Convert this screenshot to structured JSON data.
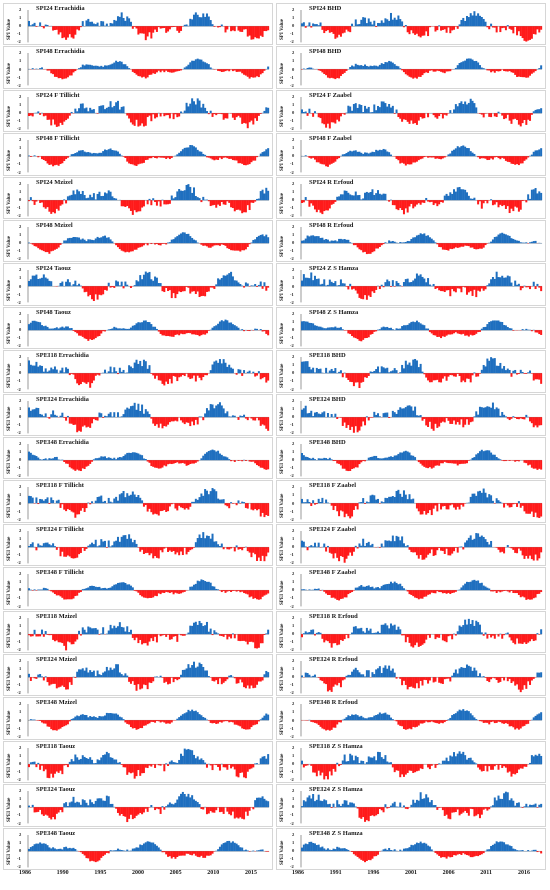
{
  "chart_data": {
    "type": "area",
    "layout": "grid 20 rows x 2 columns of small multiples",
    "colors": {
      "positive": "#1f6fbf",
      "negative": "#ff1a1a"
    },
    "yticks": [
      2,
      1,
      0,
      -1,
      -2
    ],
    "ylim": [
      -2,
      2
    ],
    "left_xticks": [
      "1986",
      "1990",
      "1995",
      "2000",
      "2005",
      "2010",
      "2015"
    ],
    "right_xticks": [
      "1986",
      "1991",
      "1996",
      "2001",
      "2006",
      "2011",
      "2016"
    ],
    "panels": [
      {
        "title": "SPI24 Errachidia",
        "ylabel": "SPI Value",
        "column": "left"
      },
      {
        "title": "SPI24 BHD",
        "ylabel": "SPI Value",
        "column": "right"
      },
      {
        "title": "SPI48 Errachidia",
        "ylabel": "SPI Value",
        "column": "left"
      },
      {
        "title": "SPI48 BHD",
        "ylabel": "SPI Value",
        "column": "right"
      },
      {
        "title": "SPI24 F Tillicht",
        "ylabel": "SPI Value",
        "column": "left"
      },
      {
        "title": "SPI24 F Zaabel",
        "ylabel": "SPI Value",
        "column": "right"
      },
      {
        "title": "SPI48 F Tillicht",
        "ylabel": "SPI Value",
        "column": "left"
      },
      {
        "title": "SPI48 F Zaabel",
        "ylabel": "SPI Value",
        "column": "right"
      },
      {
        "title": "SPI24 Mzizel",
        "ylabel": "SPI Value",
        "column": "left"
      },
      {
        "title": "SPI24 R Erfoud",
        "ylabel": "SPI Value",
        "column": "right"
      },
      {
        "title": "SPI48 Mzizel",
        "ylabel": "SPI Value",
        "column": "left"
      },
      {
        "title": "SPI48 R Erfoud",
        "ylabel": "SPI Value",
        "column": "right"
      },
      {
        "title": "SPI24 Taouz",
        "ylabel": "SPI Value",
        "column": "left"
      },
      {
        "title": "SPI24 Z S Hamza",
        "ylabel": "SPI Value",
        "column": "right"
      },
      {
        "title": "SPI48 Taouz",
        "ylabel": "SPI Value",
        "column": "left"
      },
      {
        "title": "SPI48 Z S Hamza",
        "ylabel": "SPI Value",
        "column": "right"
      },
      {
        "title": "SPEI18 Errachidia",
        "ylabel": "SPEI Value",
        "column": "left"
      },
      {
        "title": "SPEI18 BHD",
        "ylabel": "SPEI Value",
        "column": "right"
      },
      {
        "title": "SPEI24 Errachidia",
        "ylabel": "SPEI Value",
        "column": "left"
      },
      {
        "title": "SPEI24 BHD",
        "ylabel": "SPEI Value",
        "column": "right"
      },
      {
        "title": "SPEI48 Errachidia",
        "ylabel": "SPEI Value",
        "column": "left"
      },
      {
        "title": "SPEI48 BHD",
        "ylabel": "SPEI Value",
        "column": "right"
      },
      {
        "title": "SPEI18 F Tillicht",
        "ylabel": "SPEI Value",
        "column": "left"
      },
      {
        "title": "SPEI18 F Zaabel",
        "ylabel": "SPEI Value",
        "column": "right"
      },
      {
        "title": "SPEI24 F Tillicht",
        "ylabel": "SPEI Value",
        "column": "left"
      },
      {
        "title": "SPEI24 F Zaabel",
        "ylabel": "SPEI Value",
        "column": "right"
      },
      {
        "title": "SPEI48 F Tillicht",
        "ylabel": "SPEI Value",
        "column": "left"
      },
      {
        "title": "SPEI48 F Zaabel",
        "ylabel": "SPEI Value",
        "column": "right"
      },
      {
        "title": "SPEI18 Mzizel",
        "ylabel": "SPEI Value",
        "column": "left"
      },
      {
        "title": "SPEI18 R Erfoud",
        "ylabel": "SPEI Value",
        "column": "right"
      },
      {
        "title": "SPEI24 Mzizel",
        "ylabel": "SPEI Value",
        "column": "left"
      },
      {
        "title": "SPEI24 R Erfoud",
        "ylabel": "SPEI Value",
        "column": "right"
      },
      {
        "title": "SPEI48 Mzizel",
        "ylabel": "SPEI Value",
        "column": "left"
      },
      {
        "title": "SPEI48 R Erfoud",
        "ylabel": "SPEI Value",
        "column": "right"
      },
      {
        "title": "SPEI18 Taouz",
        "ylabel": "SPEI Value",
        "column": "left"
      },
      {
        "title": "SPEI18 Z S Hamza",
        "ylabel": "SPEI Value",
        "column": "right"
      },
      {
        "title": "SPEI24 Taouz",
        "ylabel": "SPEI Value",
        "column": "left"
      },
      {
        "title": "SPEI24 Z S Hamza",
        "ylabel": "SPEI Value",
        "column": "right"
      },
      {
        "title": "SPEI48 Taouz",
        "ylabel": "SPEI Value",
        "column": "left"
      },
      {
        "title": "SPEI48 Z S Hamza",
        "ylabel": "SPEI Value",
        "column": "right"
      }
    ]
  }
}
